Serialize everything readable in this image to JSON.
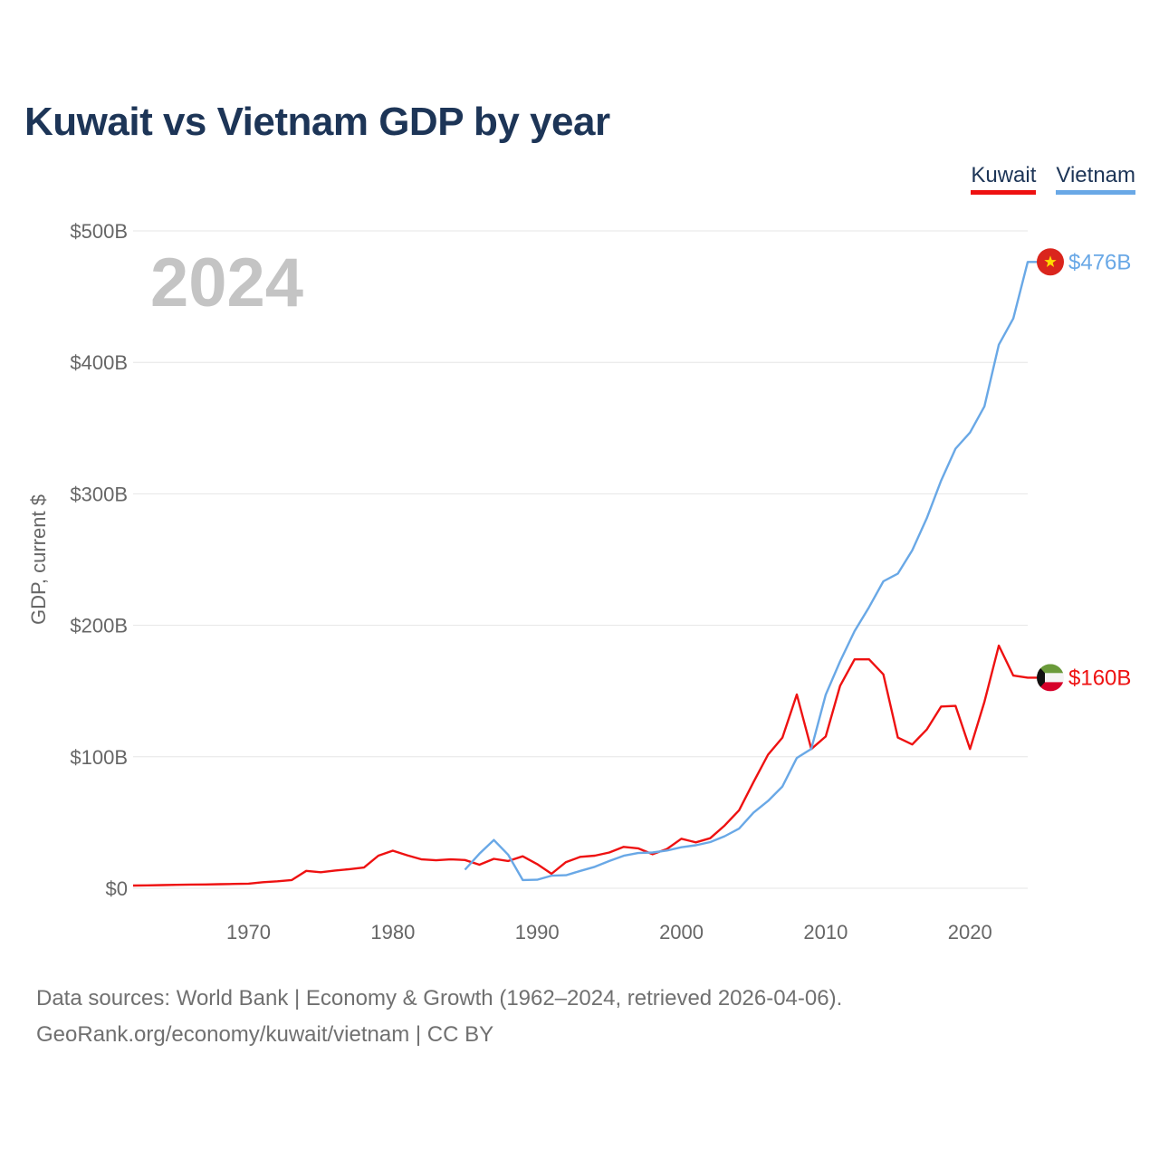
{
  "title": "Kuwait vs Vietnam GDP by year",
  "source_line1": "Data sources: World Bank | Economy & Growth (1962–2024, retrieved 2026-04-06).",
  "source_line2": "GeoRank.org/economy/kuwait/vietnam | CC BY",
  "colors": {
    "kuwait": "#ee1111",
    "vietnam": "#69a8e6",
    "title": "#1d3557",
    "grid": "#e6e6e6"
  },
  "chart_data": {
    "type": "line",
    "title": "Kuwait vs Vietnam GDP by year",
    "ylabel": "GDP, current $",
    "xlabel": "",
    "current_year_label": "2024",
    "xlim": [
      1962,
      2024
    ],
    "ylim": [
      0,
      500
    ],
    "y_unit": "billion USD",
    "y_ticks": [
      {
        "value": 0,
        "label": "$0"
      },
      {
        "value": 100,
        "label": "$100B"
      },
      {
        "value": 200,
        "label": "$200B"
      },
      {
        "value": 300,
        "label": "$300B"
      },
      {
        "value": 400,
        "label": "$400B"
      },
      {
        "value": 500,
        "label": "$500B"
      }
    ],
    "x_ticks": [
      {
        "value": 1970,
        "label": "1970"
      },
      {
        "value": 1980,
        "label": "1980"
      },
      {
        "value": 1990,
        "label": "1990"
      },
      {
        "value": 2000,
        "label": "2000"
      },
      {
        "value": 2010,
        "label": "2010"
      },
      {
        "value": 2020,
        "label": "2020"
      }
    ],
    "legend": [
      "Kuwait",
      "Vietnam"
    ],
    "series": [
      {
        "name": "Kuwait",
        "color": "#ee1111",
        "end_label": "$160B",
        "x": [
          1962,
          1963,
          1964,
          1965,
          1966,
          1967,
          1968,
          1969,
          1970,
          1971,
          1972,
          1973,
          1974,
          1975,
          1976,
          1977,
          1978,
          1979,
          1980,
          1981,
          1982,
          1983,
          1984,
          1985,
          1986,
          1987,
          1988,
          1989,
          1990,
          1991,
          1992,
          1993,
          1994,
          1995,
          1996,
          1997,
          1998,
          1999,
          2000,
          2001,
          2002,
          2003,
          2004,
          2005,
          2006,
          2007,
          2008,
          2009,
          2010,
          2011,
          2012,
          2013,
          2014,
          2015,
          2016,
          2017,
          2018,
          2019,
          2020,
          2021,
          2022,
          2023,
          2024
        ],
        "values": [
          2.1,
          2.2,
          2.4,
          2.6,
          2.8,
          2.9,
          3.1,
          3.3,
          3.5,
          4.6,
          5.3,
          6.3,
          13.2,
          12.2,
          13.5,
          14.5,
          15.8,
          24.8,
          28.6,
          25.1,
          22.0,
          21.3,
          22.0,
          21.5,
          17.9,
          22.4,
          20.7,
          24.3,
          18.4,
          11.0,
          19.9,
          23.9,
          24.8,
          27.2,
          31.5,
          30.4,
          25.9,
          29.9,
          37.7,
          34.9,
          38.1,
          47.8,
          59.4,
          80.8,
          101.6,
          114.6,
          147.4,
          105.9,
          115.4,
          154.0,
          174.1,
          174.2,
          162.7,
          114.6,
          109.4,
          120.7,
          138.2,
          138.7,
          105.9,
          141.8,
          184.6,
          161.8,
          160.2
        ]
      },
      {
        "name": "Vietnam",
        "color": "#69a8e6",
        "end_label": "$476B",
        "x": [
          1985,
          1986,
          1987,
          1988,
          1989,
          1990,
          1991,
          1992,
          1993,
          1994,
          1995,
          1996,
          1997,
          1998,
          1999,
          2000,
          2001,
          2002,
          2003,
          2004,
          2005,
          2006,
          2007,
          2008,
          2009,
          2010,
          2011,
          2012,
          2013,
          2014,
          2015,
          2016,
          2017,
          2018,
          2019,
          2020,
          2021,
          2022,
          2023,
          2024
        ],
        "values": [
          14.1,
          26.3,
          36.7,
          25.4,
          6.3,
          6.5,
          9.6,
          9.9,
          13.2,
          16.3,
          20.7,
          24.7,
          26.8,
          27.2,
          28.7,
          31.2,
          32.7,
          35.1,
          39.6,
          45.4,
          57.6,
          66.4,
          77.4,
          99.1,
          106.0,
          147.2,
          172.6,
          195.6,
          213.7,
          233.5,
          239.3,
          257.1,
          281.4,
          310.1,
          334.4,
          346.6,
          366.5,
          413.4,
          433.4,
          476.4
        ]
      }
    ]
  }
}
